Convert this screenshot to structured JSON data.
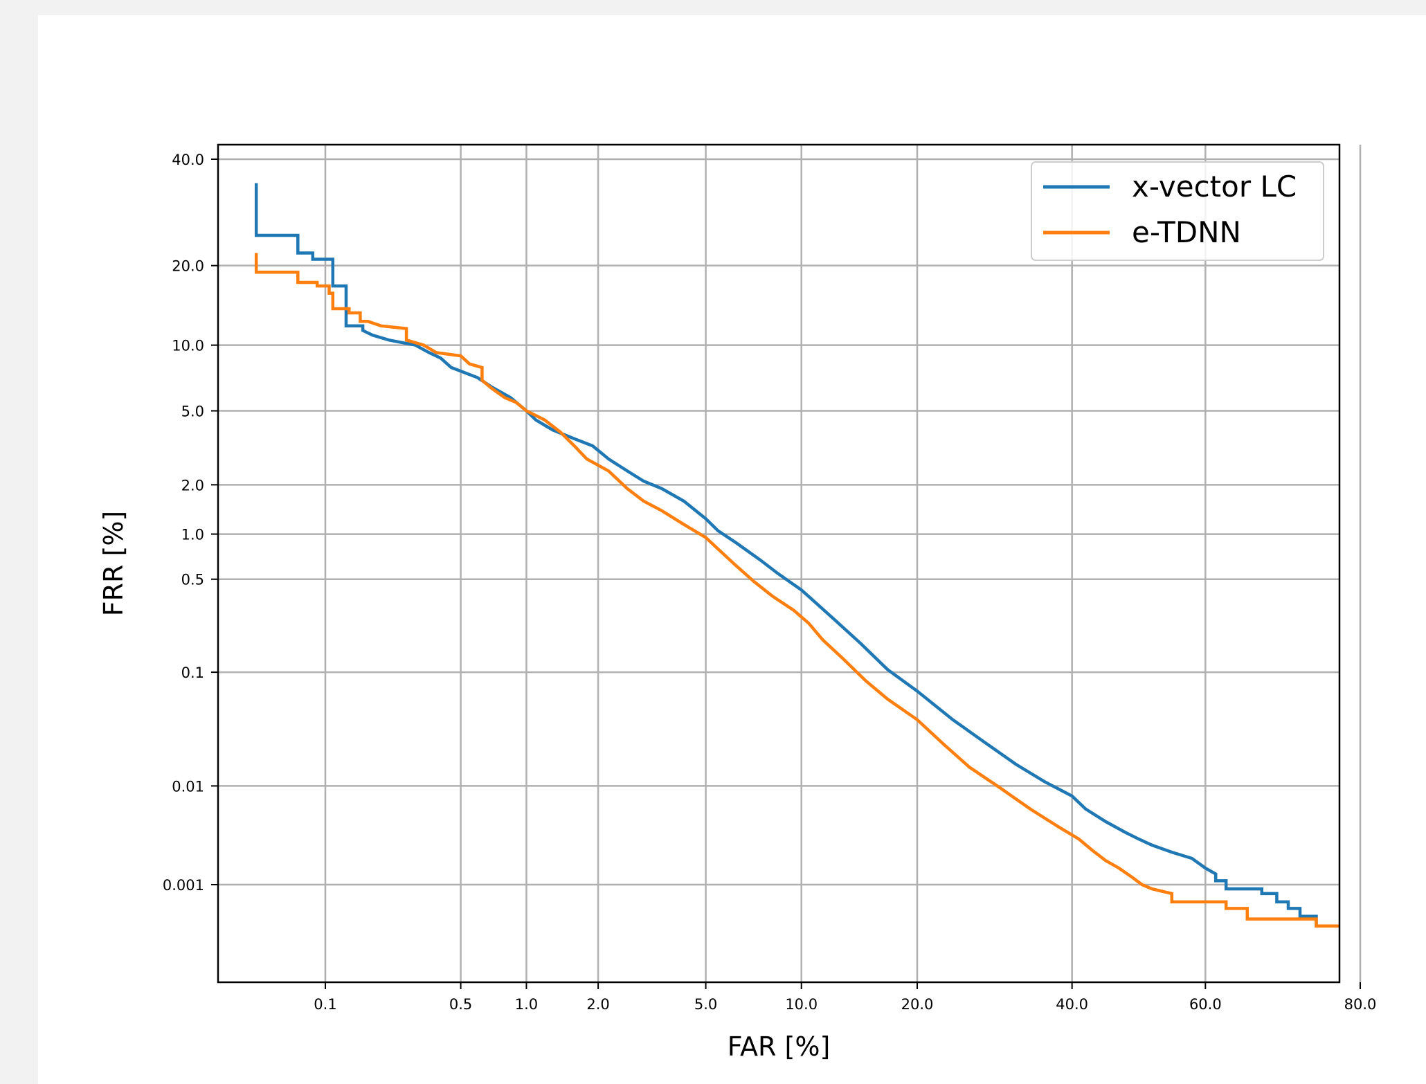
{
  "chart_data": {
    "type": "line",
    "xlabel": "FAR [%]",
    "ylabel": "FRR [%]",
    "grid": true,
    "legend_position": "top-right",
    "x_ticks": [
      {
        "label": "0.1",
        "value": 0.1
      },
      {
        "label": "0.5",
        "value": 0.5
      },
      {
        "label": "1.0",
        "value": 1.0
      },
      {
        "label": "2.0",
        "value": 2.0
      },
      {
        "label": "5.0",
        "value": 5.0
      },
      {
        "label": "10.0",
        "value": 10.0
      },
      {
        "label": "20.0",
        "value": 20.0
      },
      {
        "label": "40.0",
        "value": 40.0
      },
      {
        "label": "60.0",
        "value": 60.0
      },
      {
        "label": "80.0",
        "value": 80.0
      }
    ],
    "y_ticks": [
      {
        "label": "40.0",
        "value": 40.0
      },
      {
        "label": "20.0",
        "value": 20.0
      },
      {
        "label": "10.0",
        "value": 10.0
      },
      {
        "label": "5.0",
        "value": 5.0
      },
      {
        "label": "2.0",
        "value": 2.0
      },
      {
        "label": "1.0",
        "value": 1.0
      },
      {
        "label": "0.5",
        "value": 0.5
      },
      {
        "label": "0.1",
        "value": 0.1
      },
      {
        "label": "0.01",
        "value": 0.01
      },
      {
        "label": "0.001",
        "value": 0.001
      }
    ],
    "series": [
      {
        "name": "x-vector LC",
        "color": "#1f77b4",
        "points": [
          [
            0.04,
            35.0
          ],
          [
            0.04,
            25.0
          ],
          [
            0.07,
            25.0
          ],
          [
            0.07,
            22.0
          ],
          [
            0.085,
            22.0
          ],
          [
            0.085,
            21.0
          ],
          [
            0.11,
            21.0
          ],
          [
            0.11,
            17.0
          ],
          [
            0.13,
            17.0
          ],
          [
            0.13,
            12.0
          ],
          [
            0.16,
            12.0
          ],
          [
            0.16,
            11.5
          ],
          [
            0.18,
            11.0
          ],
          [
            0.22,
            10.5
          ],
          [
            0.3,
            10.0
          ],
          [
            0.35,
            9.3
          ],
          [
            0.4,
            8.8
          ],
          [
            0.45,
            8.0
          ],
          [
            0.5,
            7.7
          ],
          [
            0.6,
            7.2
          ],
          [
            0.7,
            6.5
          ],
          [
            0.85,
            5.8
          ],
          [
            1.0,
            5.0
          ],
          [
            1.1,
            4.5
          ],
          [
            1.3,
            4.0
          ],
          [
            1.6,
            3.6
          ],
          [
            1.9,
            3.3
          ],
          [
            2.2,
            2.8
          ],
          [
            2.6,
            2.4
          ],
          [
            3.0,
            2.1
          ],
          [
            3.5,
            1.9
          ],
          [
            4.2,
            1.6
          ],
          [
            5.0,
            1.25
          ],
          [
            5.5,
            1.05
          ],
          [
            6.3,
            0.88
          ],
          [
            7.5,
            0.68
          ],
          [
            8.5,
            0.55
          ],
          [
            10.0,
            0.42
          ],
          [
            11.0,
            0.34
          ],
          [
            12.5,
            0.25
          ],
          [
            14.5,
            0.17
          ],
          [
            17.0,
            0.105
          ],
          [
            20.0,
            0.07
          ],
          [
            24.0,
            0.04
          ],
          [
            28.0,
            0.025
          ],
          [
            32.0,
            0.016
          ],
          [
            36.0,
            0.011
          ],
          [
            40.0,
            0.008
          ],
          [
            42.0,
            0.006
          ],
          [
            45.0,
            0.0045
          ],
          [
            48.0,
            0.0035
          ],
          [
            50.0,
            0.003
          ],
          [
            52.0,
            0.0026
          ],
          [
            55.0,
            0.0022
          ],
          [
            58.0,
            0.0019
          ],
          [
            60.0,
            0.0015
          ],
          [
            61.5,
            0.0013
          ],
          [
            61.5,
            0.0011
          ],
          [
            63.0,
            0.0011
          ],
          [
            63.0,
            0.0009
          ],
          [
            68.0,
            0.0009
          ],
          [
            68.0,
            0.0008
          ],
          [
            70.0,
            0.0008
          ],
          [
            70.0,
            0.00065
          ],
          [
            71.5,
            0.00065
          ],
          [
            71.5,
            0.00055
          ],
          [
            73.0,
            0.00055
          ],
          [
            73.0,
            0.00045
          ],
          [
            75.0,
            0.00045
          ],
          [
            75.0,
            0.00035
          ],
          [
            76.5,
            0.00035
          ]
        ]
      },
      {
        "name": "e-TDNN",
        "color": "#ff7f0e",
        "points": [
          [
            0.04,
            22.0
          ],
          [
            0.04,
            19.0
          ],
          [
            0.07,
            19.0
          ],
          [
            0.07,
            17.5
          ],
          [
            0.09,
            17.5
          ],
          [
            0.09,
            17.0
          ],
          [
            0.105,
            17.0
          ],
          [
            0.105,
            16.0
          ],
          [
            0.11,
            16.0
          ],
          [
            0.11,
            14.0
          ],
          [
            0.135,
            14.0
          ],
          [
            0.135,
            13.5
          ],
          [
            0.155,
            13.5
          ],
          [
            0.155,
            12.5
          ],
          [
            0.17,
            12.5
          ],
          [
            0.2,
            12.0
          ],
          [
            0.27,
            11.7
          ],
          [
            0.27,
            10.5
          ],
          [
            0.33,
            10.0
          ],
          [
            0.38,
            9.3
          ],
          [
            0.5,
            9.0
          ],
          [
            0.55,
            8.3
          ],
          [
            0.63,
            8.0
          ],
          [
            0.63,
            7.0
          ],
          [
            0.7,
            6.4
          ],
          [
            0.8,
            5.8
          ],
          [
            0.9,
            5.5
          ],
          [
            1.0,
            5.0
          ],
          [
            1.2,
            4.5
          ],
          [
            1.4,
            3.9
          ],
          [
            1.6,
            3.3
          ],
          [
            1.8,
            2.8
          ],
          [
            2.2,
            2.4
          ],
          [
            2.6,
            1.9
          ],
          [
            3.0,
            1.6
          ],
          [
            3.5,
            1.4
          ],
          [
            4.2,
            1.15
          ],
          [
            5.0,
            0.95
          ],
          [
            5.5,
            0.8
          ],
          [
            6.3,
            0.62
          ],
          [
            7.2,
            0.48
          ],
          [
            8.2,
            0.38
          ],
          [
            9.5,
            0.3
          ],
          [
            10.5,
            0.24
          ],
          [
            11.5,
            0.18
          ],
          [
            13.0,
            0.13
          ],
          [
            15.0,
            0.085
          ],
          [
            17.0,
            0.06
          ],
          [
            20.0,
            0.04
          ],
          [
            23.0,
            0.024
          ],
          [
            26.0,
            0.015
          ],
          [
            30.0,
            0.0095
          ],
          [
            34.0,
            0.006
          ],
          [
            38.0,
            0.004
          ],
          [
            41.0,
            0.003
          ],
          [
            43.0,
            0.0023
          ],
          [
            45.0,
            0.0018
          ],
          [
            47.0,
            0.0015
          ],
          [
            49.0,
            0.0012
          ],
          [
            50.5,
            0.001
          ],
          [
            52.0,
            0.0009
          ],
          [
            55.0,
            0.0008
          ],
          [
            55.0,
            0.00065
          ],
          [
            63.0,
            0.00065
          ],
          [
            63.0,
            0.00055
          ],
          [
            66.0,
            0.00055
          ],
          [
            66.0,
            0.00042
          ],
          [
            75.0,
            0.00042
          ],
          [
            75.0,
            0.00035
          ],
          [
            79.0,
            0.00035
          ]
        ]
      }
    ]
  }
}
